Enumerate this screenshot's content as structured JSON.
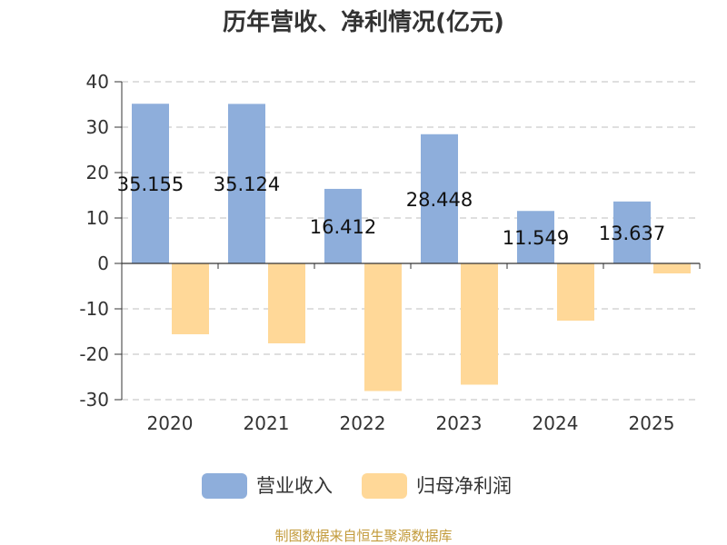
{
  "chart_data": {
    "type": "bar",
    "title": "历年营收、净利情况(亿元)",
    "categories": [
      "2020",
      "2021",
      "2022",
      "2023",
      "2024",
      "2025"
    ],
    "series": [
      {
        "name": "营业收入",
        "color": "#8eaedb",
        "values": [
          35.155,
          35.124,
          16.412,
          28.448,
          11.549,
          13.637
        ],
        "data_labels": [
          "35.155",
          "35.124",
          "16.412",
          "28.448",
          "11.549",
          "13.637"
        ]
      },
      {
        "name": "归母净利润",
        "color": "#ffd898",
        "values": [
          -15.6,
          -17.6,
          -28.1,
          -26.7,
          -12.6,
          -2.2
        ]
      }
    ],
    "ylim": [
      -30,
      40
    ],
    "yticks": [
      40,
      30,
      20,
      10,
      0,
      -10,
      -20,
      -30
    ],
    "ytick_labels": [
      "40",
      "30",
      "20",
      "10",
      "0",
      "-10",
      "-20",
      "-30"
    ],
    "grid": true,
    "legend_position": "bottom",
    "xlabel": "",
    "ylabel": ""
  },
  "footer": {
    "source": "制图数据来自恒生聚源数据库"
  }
}
